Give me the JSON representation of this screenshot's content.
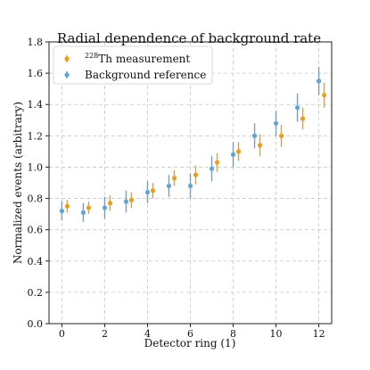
{
  "chart_data": {
    "type": "scatter",
    "title": "Radial dependence of background rate",
    "xlabel": "Detector ring (1)",
    "ylabel": "Normalized events (arbitrary)",
    "xlim": [
      -0.6,
      12.6
    ],
    "ylim": [
      0.0,
      1.8
    ],
    "xticks": [
      0,
      2,
      4,
      6,
      8,
      10,
      12
    ],
    "yticks": [
      0.0,
      0.2,
      0.4,
      0.6,
      0.8,
      1.0,
      1.2,
      1.4,
      1.6,
      1.8
    ],
    "grid": true,
    "legend_position": "top-left",
    "series": [
      {
        "name_sup": "228",
        "name_rest": "Th measurement",
        "color": "#f39c12",
        "x": [
          0,
          1,
          2,
          3,
          4,
          5,
          6,
          7,
          8,
          9,
          10,
          11,
          12
        ],
        "y": [
          0.75,
          0.74,
          0.77,
          0.79,
          0.85,
          0.93,
          0.95,
          1.03,
          1.1,
          1.14,
          1.2,
          1.31,
          1.46
        ],
        "yerr": [
          0.04,
          0.04,
          0.05,
          0.05,
          0.05,
          0.05,
          0.06,
          0.06,
          0.06,
          0.07,
          0.07,
          0.07,
          0.08
        ]
      },
      {
        "name": "Background reference",
        "color": "#5da5da",
        "x": [
          0,
          1,
          2,
          3,
          4,
          5,
          6,
          7,
          8,
          9,
          10,
          11,
          12
        ],
        "y": [
          0.72,
          0.71,
          0.74,
          0.78,
          0.84,
          0.88,
          0.88,
          0.99,
          1.08,
          1.2,
          1.28,
          1.38,
          1.55
        ],
        "yerr": [
          0.06,
          0.06,
          0.07,
          0.07,
          0.07,
          0.07,
          0.08,
          0.08,
          0.08,
          0.08,
          0.08,
          0.09,
          0.09
        ]
      }
    ]
  }
}
